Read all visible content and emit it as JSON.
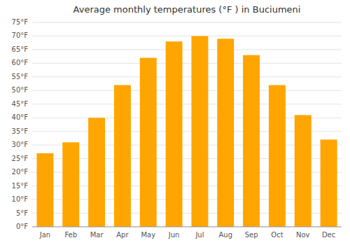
{
  "chart_data": {
    "type": "bar",
    "title": "Average monthly temperatures (°F ) in Buciumeni",
    "categories": [
      "Jan",
      "Feb",
      "Mar",
      "Apr",
      "May",
      "Jun",
      "Jul",
      "Aug",
      "Sep",
      "Oct",
      "Nov",
      "Dec"
    ],
    "values": [
      27,
      31,
      40,
      52,
      62,
      68,
      70,
      69,
      63,
      52,
      41,
      32
    ],
    "color": "#FFA500",
    "ylim": [
      0,
      75
    ],
    "yticks": [
      {
        "value": 0,
        "label": "0°F"
      },
      {
        "value": 5,
        "label": "5°F"
      },
      {
        "value": 10,
        "label": "10°F"
      },
      {
        "value": 15,
        "label": "15°F"
      },
      {
        "value": 20,
        "label": "20°F"
      },
      {
        "value": 25,
        "label": "25°F"
      },
      {
        "value": 30,
        "label": "30°F"
      },
      {
        "value": 35,
        "label": "35°F"
      },
      {
        "value": 40,
        "label": "40°F"
      },
      {
        "value": 45,
        "label": "45°F"
      },
      {
        "value": 50,
        "label": "50°F"
      },
      {
        "value": 55,
        "label": "55°F"
      },
      {
        "value": 60,
        "label": "60°F"
      },
      {
        "value": 65,
        "label": "65°F"
      },
      {
        "value": 70,
        "label": "70°F"
      },
      {
        "value": 75,
        "label": "75°F"
      }
    ],
    "grid": true
  }
}
